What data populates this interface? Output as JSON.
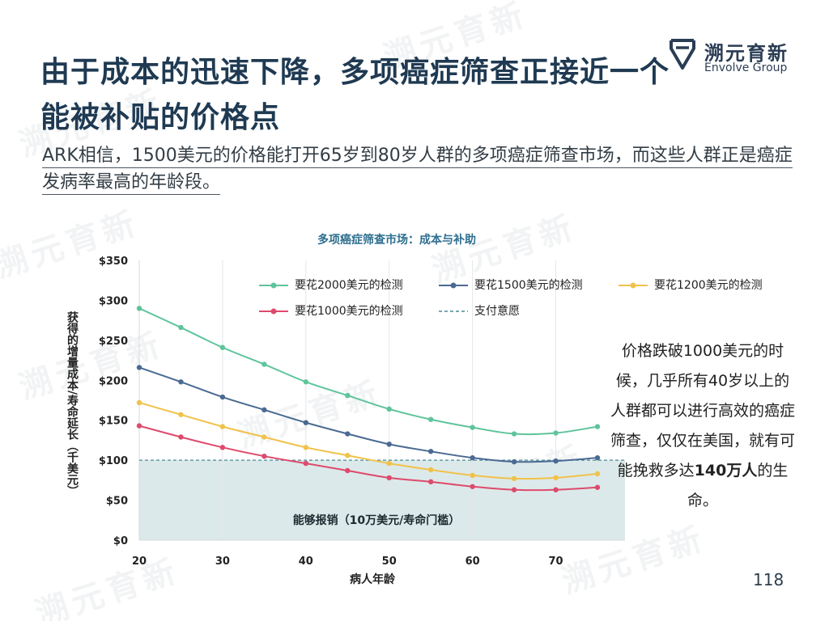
{
  "logo": {
    "cn": "溯元育新",
    "en": "Envolve Group",
    "icon": "logo-mark-icon"
  },
  "title": "由于成本的迅速下降，多项癌症筛查正接近一个能被补贴的价格点",
  "subtitle": "ARK相信，1500美元的价格能打开65岁到80岁人群的多项癌症筛查市场，而这些人群正是癌症发病率最高的年龄段。",
  "annotation": {
    "before": "价格跌破1000美元的时候，几乎所有40岁以上的人群都可以进行高效的癌症筛查，仅仅在美国，就有可能挽救多达",
    "highlight": "140万人",
    "after": "的生命。"
  },
  "page_number": "118",
  "chart_data": {
    "type": "line",
    "title": "多项癌症筛查市场：成本与补助",
    "xlabel": "病人年龄",
    "ylabel": "获得的增量成本/寿命延长（千美元）",
    "x": [
      20,
      25,
      30,
      35,
      40,
      45,
      50,
      55,
      60,
      65,
      70,
      75
    ],
    "xlim": [
      20,
      75
    ],
    "ylim": [
      0,
      350
    ],
    "x_ticks": [
      "20",
      "30",
      "40",
      "50",
      "60",
      "70"
    ],
    "x_tick_values": [
      20,
      30,
      40,
      50,
      60,
      70
    ],
    "y_ticks": [
      "$0",
      "$50",
      "$100",
      "$150",
      "$200",
      "$250",
      "$300",
      "$350"
    ],
    "y_tick_values": [
      0,
      50,
      100,
      150,
      200,
      250,
      300,
      350
    ],
    "grid": "vertical",
    "series": [
      {
        "name": "要花2000美元的检测",
        "color": "#5ec49b",
        "values": [
          290,
          266,
          241,
          220,
          198,
          181,
          164,
          151,
          141,
          133,
          134,
          142
        ]
      },
      {
        "name": "要花1500美元的检测",
        "color": "#4a6a92",
        "values": [
          216,
          198,
          179,
          163,
          147,
          133,
          120,
          111,
          103,
          98,
          99,
          103
        ]
      },
      {
        "name": "要花1200美元的检测",
        "color": "#f0c24a",
        "values": [
          172,
          157,
          142,
          129,
          116,
          106,
          96,
          88,
          81,
          77,
          78,
          83
        ]
      },
      {
        "name": "要花1000美元的检测",
        "color": "#de4a6c",
        "values": [
          143,
          129,
          116,
          105,
          96,
          87,
          78,
          73,
          67,
          63,
          63,
          66
        ]
      }
    ],
    "reference_line": {
      "name": "支付意愿",
      "value": 100,
      "color": "#4a8a98"
    },
    "reimbursable_region": {
      "label": "能够报销（10万美元/寿命门槛）",
      "from": 0,
      "to": 100,
      "color": "#dce9ea"
    }
  }
}
